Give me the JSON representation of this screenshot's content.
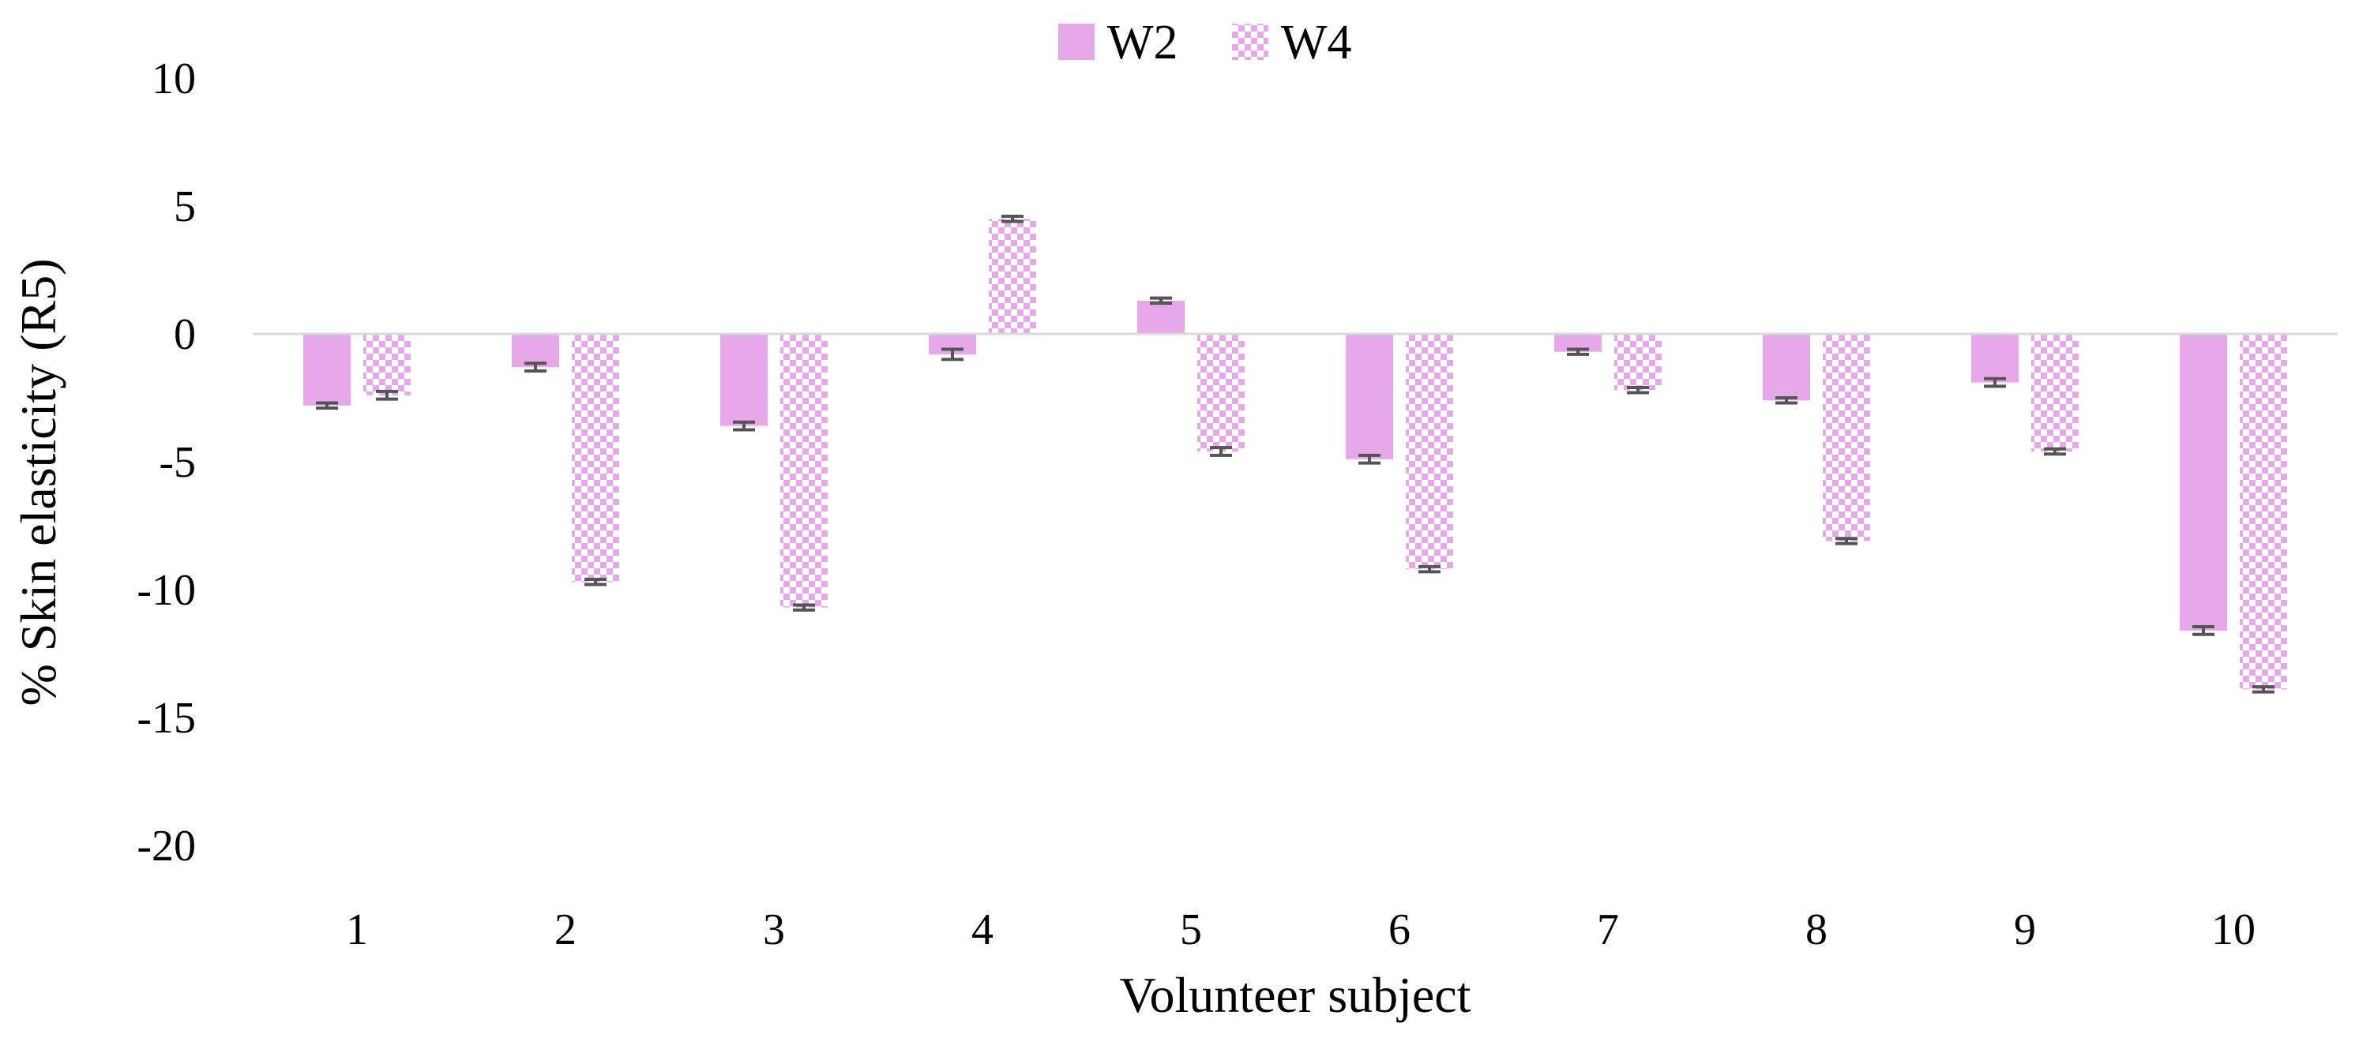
{
  "chart_data": {
    "type": "bar",
    "title": "",
    "xlabel": "Volunteer subject",
    "ylabel": "% Skin elasticity (R5)",
    "categories": [
      "1",
      "2",
      "3",
      "4",
      "5",
      "6",
      "7",
      "8",
      "9",
      "10"
    ],
    "ylim": [
      -20,
      10
    ],
    "yticks": [
      10,
      5,
      0,
      -5,
      -10,
      -15,
      -20
    ],
    "ytick_labels": [
      "10",
      "5",
      "0",
      "-5",
      "-10",
      "-15",
      "-20"
    ],
    "grid": false,
    "legend_position": "top-center",
    "series": [
      {
        "name": "W2",
        "pattern": "solid",
        "color": "#e6a8e8",
        "values": [
          -2.8,
          -1.3,
          -3.6,
          -0.8,
          1.3,
          -4.9,
          -0.7,
          -2.6,
          -1.9,
          -11.6
        ],
        "errors": [
          0.1,
          0.15,
          0.15,
          0.2,
          0.1,
          0.15,
          0.1,
          0.1,
          0.15,
          0.15
        ]
      },
      {
        "name": "W4",
        "pattern": "checkered",
        "color": "#e6a8e8",
        "values": [
          -2.4,
          -9.7,
          -10.7,
          4.5,
          -4.6,
          -9.2,
          -2.2,
          -8.1,
          -4.6,
          -13.9
        ],
        "errors": [
          0.15,
          0.1,
          0.1,
          0.1,
          0.15,
          0.1,
          0.1,
          0.1,
          0.1,
          0.1
        ]
      }
    ],
    "colors": {
      "bar": "#e6a8e8",
      "error_bar": "#555555",
      "axis": "#d9d9d9"
    }
  }
}
